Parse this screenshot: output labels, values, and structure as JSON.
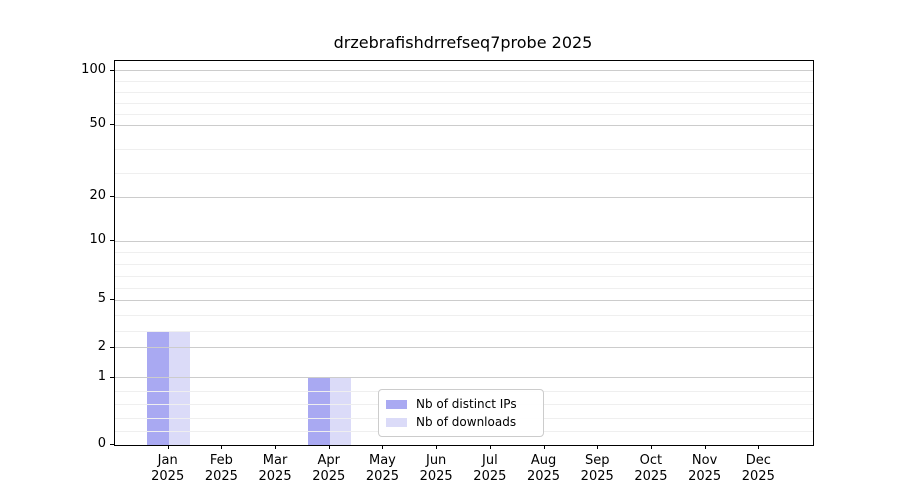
{
  "chart_data": {
    "type": "bar",
    "title": "drzebrafishdrrefseq7probe 2025",
    "categories": [
      "Jan",
      "Feb",
      "Mar",
      "Apr",
      "May",
      "Jun",
      "Jul",
      "Aug",
      "Sep",
      "Oct",
      "Nov",
      "Dec"
    ],
    "year_label": "2025",
    "series": [
      {
        "name": "Nb of distinct IPs",
        "color": "#a9a9f2",
        "values": [
          3,
          0,
          0,
          1,
          0,
          0,
          0,
          0,
          0,
          0,
          0,
          0
        ]
      },
      {
        "name": "Nb of downloads",
        "color": "#dbdbf8",
        "values": [
          3,
          0,
          0,
          1,
          0,
          0,
          0,
          0,
          0,
          0,
          0,
          0
        ]
      }
    ],
    "y_axis": {
      "scale": "symlog",
      "ticks": [
        0,
        1,
        2,
        5,
        10,
        20,
        50,
        100
      ],
      "minor_ticks": [
        0.2,
        0.4,
        0.6,
        0.8,
        3,
        4,
        6,
        7,
        8,
        9,
        30,
        40,
        60,
        70,
        80,
        90
      ],
      "range": [
        0,
        120
      ]
    },
    "grid": {
      "horizontal_major": true,
      "horizontal_minor": true,
      "vertical": false
    },
    "legend": {
      "position": "lower center",
      "items": [
        "Nb of distinct IPs",
        "Nb of downloads"
      ]
    }
  }
}
